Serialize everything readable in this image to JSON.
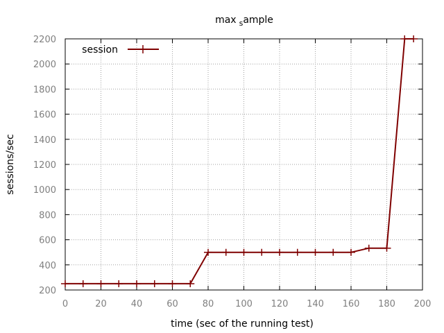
{
  "chart_data": {
    "type": "line",
    "title_main": "max",
    "title_sub": "s",
    "title_rest": "ample",
    "xlabel": "time (sec of the running test)",
    "ylabel": "sessions/sec",
    "xlim": [
      0,
      200
    ],
    "ylim": [
      200,
      2200
    ],
    "xticks": [
      0,
      20,
      40,
      60,
      80,
      100,
      120,
      140,
      160,
      180,
      200
    ],
    "yticks": [
      200,
      400,
      600,
      800,
      1000,
      1200,
      1400,
      1600,
      1800,
      2000,
      2200
    ],
    "grid": true,
    "legend_position": "top-left",
    "series": [
      {
        "name": "session",
        "color": "#7f0000",
        "x": [
          0,
          10,
          20,
          30,
          40,
          50,
          60,
          70,
          80,
          90,
          100,
          110,
          120,
          130,
          140,
          150,
          160,
          170,
          180,
          190,
          195
        ],
        "y": [
          250,
          250,
          250,
          250,
          250,
          250,
          250,
          250,
          500,
          500,
          500,
          500,
          500,
          500,
          500,
          500,
          500,
          533,
          533,
          2200,
          2200
        ]
      }
    ]
  }
}
